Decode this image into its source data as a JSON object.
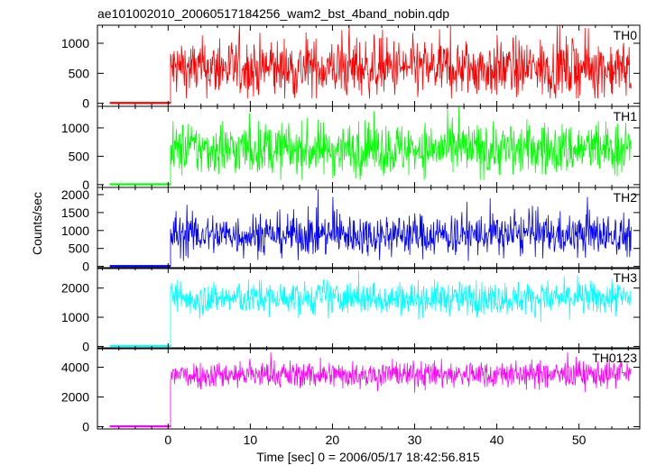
{
  "chart_data": {
    "type": "line",
    "title": "ae101002010_20060517184256_wam2_bst_4band_nobin.qdp",
    "xlabel": "Time [sec] 0 = 2006/05/17 18:42:56.815",
    "ylabel": "Counts/sec",
    "xlim": [
      -8.6,
      57.4
    ],
    "x_ticks": [
      0,
      10,
      20,
      30,
      40,
      50
    ],
    "x_tick_labels": [
      "0",
      "10",
      "20",
      "30",
      "40",
      "50"
    ],
    "burst_start": 0.3,
    "data_end": 56.4,
    "panels": [
      {
        "name": "TH0",
        "color": "#ff0000",
        "ylim": [
          -50,
          1300
        ],
        "y_ticks": [
          0,
          500,
          1000
        ],
        "y_tick_labels": [
          "0",
          "500",
          "1000"
        ],
        "pre_level": 0,
        "mean": 580,
        "spread": 240,
        "min": 80,
        "max": 1300
      },
      {
        "name": "TH1",
        "color": "#00ff00",
        "ylim": [
          -50,
          1380
        ],
        "y_ticks": [
          0,
          500,
          1000
        ],
        "y_tick_labels": [
          "0",
          "500",
          "1000"
        ],
        "pre_level": 0,
        "mean": 620,
        "spread": 230,
        "min": 80,
        "max": 1380
      },
      {
        "name": "TH2",
        "color": "#0000ff",
        "ylim": [
          -60,
          2200
        ],
        "y_ticks": [
          0,
          500,
          1000,
          1500,
          2000
        ],
        "y_tick_labels": [
          "0",
          "500",
          "1000",
          "1500",
          "2000"
        ],
        "pre_level": 0,
        "mean": 880,
        "spread": 290,
        "min": 150,
        "max": 2150
      },
      {
        "name": "TH3",
        "color": "#00ffff",
        "ylim": [
          -80,
          2700
        ],
        "y_ticks": [
          0,
          1000,
          2000
        ],
        "y_tick_labels": [
          "0",
          "1000",
          "2000"
        ],
        "pre_level": 0,
        "mean": 1650,
        "spread": 280,
        "min": 700,
        "max": 2700
      },
      {
        "name": "TH0123",
        "color": "#ff00ff",
        "ylim": [
          -150,
          5300
        ],
        "y_ticks": [
          0,
          2000,
          4000
        ],
        "y_tick_labels": [
          "0",
          "2000",
          "4000"
        ],
        "pre_level": 0,
        "mean": 3500,
        "spread": 450,
        "min": 1900,
        "max": 5000
      }
    ]
  }
}
